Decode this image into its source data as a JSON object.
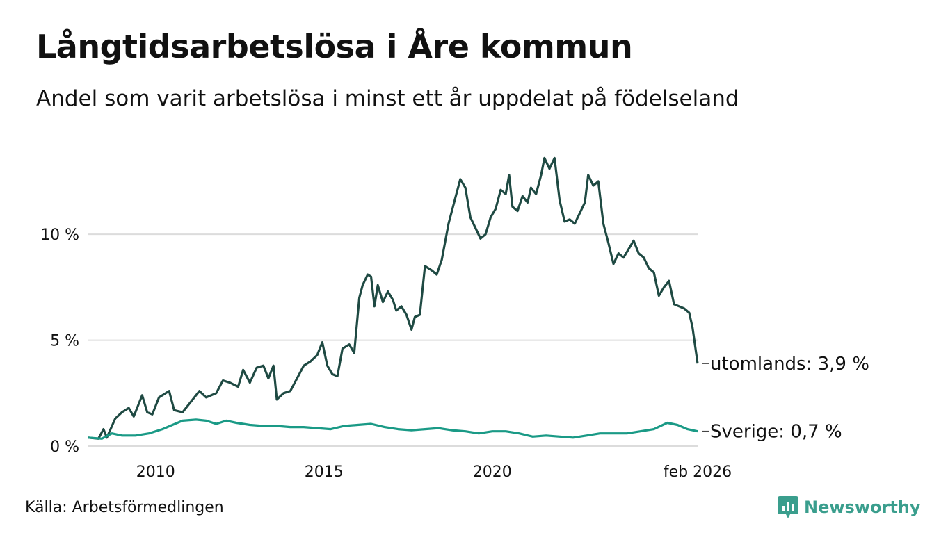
{
  "header": {
    "title": "Långtidsarbetslösa i Åre kommun",
    "subtitle": "Andel som varit arbetslösa i minst ett år uppdelat på födelseland"
  },
  "footer": {
    "source": "Källa: Arbetsförmedlingen",
    "brand": "Newsworthy"
  },
  "chart_data": {
    "type": "line",
    "title": "Långtidsarbetslösa i Åre kommun",
    "subtitle": "Andel som varit arbetslösa i minst ett år uppdelat på födelseland",
    "xlabel": "",
    "ylabel": "",
    "xlim": [
      2008.0,
      2026.1
    ],
    "ylim": [
      0,
      14.5
    ],
    "y_ticks": [
      {
        "value": 0,
        "label": "0 %"
      },
      {
        "value": 5,
        "label": "5 %"
      },
      {
        "value": 10,
        "label": "10 %"
      }
    ],
    "x_ticks": [
      {
        "value": 2010,
        "label": "2010"
      },
      {
        "value": 2015,
        "label": "2015"
      },
      {
        "value": 2020,
        "label": "2020"
      },
      {
        "value": 2026.1,
        "label": "feb 2026"
      }
    ],
    "grid": true,
    "series": [
      {
        "name": "utomlands",
        "end_label": "utomlands: 3,9 %",
        "color": "#1f4a43",
        "points": [
          [
            2008.0,
            0.4
          ],
          [
            2008.3,
            0.35
          ],
          [
            2008.45,
            0.8
          ],
          [
            2008.55,
            0.4
          ],
          [
            2008.8,
            1.3
          ],
          [
            2009.0,
            1.6
          ],
          [
            2009.2,
            1.8
          ],
          [
            2009.35,
            1.4
          ],
          [
            2009.6,
            2.4
          ],
          [
            2009.75,
            1.6
          ],
          [
            2009.9,
            1.5
          ],
          [
            2010.1,
            2.3
          ],
          [
            2010.4,
            2.6
          ],
          [
            2010.55,
            1.7
          ],
          [
            2010.8,
            1.6
          ],
          [
            2011.0,
            2.0
          ],
          [
            2011.3,
            2.6
          ],
          [
            2011.5,
            2.3
          ],
          [
            2011.8,
            2.5
          ],
          [
            2012.0,
            3.1
          ],
          [
            2012.2,
            3.0
          ],
          [
            2012.45,
            2.8
          ],
          [
            2012.6,
            3.6
          ],
          [
            2012.8,
            3.0
          ],
          [
            2013.0,
            3.7
          ],
          [
            2013.2,
            3.8
          ],
          [
            2013.35,
            3.2
          ],
          [
            2013.5,
            3.8
          ],
          [
            2013.6,
            2.2
          ],
          [
            2013.8,
            2.5
          ],
          [
            2014.0,
            2.6
          ],
          [
            2014.2,
            3.2
          ],
          [
            2014.4,
            3.8
          ],
          [
            2014.6,
            4.0
          ],
          [
            2014.8,
            4.3
          ],
          [
            2014.95,
            4.9
          ],
          [
            2015.1,
            3.8
          ],
          [
            2015.25,
            3.4
          ],
          [
            2015.4,
            3.3
          ],
          [
            2015.55,
            4.6
          ],
          [
            2015.75,
            4.8
          ],
          [
            2015.9,
            4.4
          ],
          [
            2016.05,
            7.0
          ],
          [
            2016.15,
            7.6
          ],
          [
            2016.3,
            8.1
          ],
          [
            2016.4,
            8.0
          ],
          [
            2016.5,
            6.6
          ],
          [
            2016.6,
            7.6
          ],
          [
            2016.75,
            6.8
          ],
          [
            2016.9,
            7.3
          ],
          [
            2017.05,
            6.9
          ],
          [
            2017.15,
            6.4
          ],
          [
            2017.3,
            6.6
          ],
          [
            2017.45,
            6.2
          ],
          [
            2017.6,
            5.5
          ],
          [
            2017.7,
            6.1
          ],
          [
            2017.85,
            6.2
          ],
          [
            2018.0,
            8.5
          ],
          [
            2018.2,
            8.3
          ],
          [
            2018.35,
            8.1
          ],
          [
            2018.5,
            8.8
          ],
          [
            2018.7,
            10.5
          ],
          [
            2018.9,
            11.7
          ],
          [
            2019.05,
            12.6
          ],
          [
            2019.2,
            12.2
          ],
          [
            2019.35,
            10.8
          ],
          [
            2019.5,
            10.3
          ],
          [
            2019.65,
            9.8
          ],
          [
            2019.8,
            10.0
          ],
          [
            2019.95,
            10.8
          ],
          [
            2020.1,
            11.2
          ],
          [
            2020.25,
            12.1
          ],
          [
            2020.4,
            11.9
          ],
          [
            2020.5,
            12.8
          ],
          [
            2020.6,
            11.3
          ],
          [
            2020.75,
            11.1
          ],
          [
            2020.9,
            11.8
          ],
          [
            2021.05,
            11.5
          ],
          [
            2021.15,
            12.2
          ],
          [
            2021.3,
            11.9
          ],
          [
            2021.45,
            12.8
          ],
          [
            2021.55,
            13.6
          ],
          [
            2021.7,
            13.1
          ],
          [
            2021.85,
            13.6
          ],
          [
            2022.0,
            11.6
          ],
          [
            2022.15,
            10.6
          ],
          [
            2022.3,
            10.7
          ],
          [
            2022.45,
            10.5
          ],
          [
            2022.6,
            11.0
          ],
          [
            2022.75,
            11.5
          ],
          [
            2022.85,
            12.8
          ],
          [
            2023.0,
            12.3
          ],
          [
            2023.15,
            12.5
          ],
          [
            2023.3,
            10.5
          ],
          [
            2023.45,
            9.6
          ],
          [
            2023.6,
            8.6
          ],
          [
            2023.75,
            9.1
          ],
          [
            2023.9,
            8.9
          ],
          [
            2024.05,
            9.3
          ],
          [
            2024.2,
            9.7
          ],
          [
            2024.35,
            9.1
          ],
          [
            2024.5,
            8.9
          ],
          [
            2024.65,
            8.4
          ],
          [
            2024.8,
            8.2
          ],
          [
            2024.95,
            7.1
          ],
          [
            2025.1,
            7.5
          ],
          [
            2025.25,
            7.8
          ],
          [
            2025.4,
            6.7
          ],
          [
            2025.55,
            6.6
          ],
          [
            2025.7,
            6.5
          ],
          [
            2025.85,
            6.3
          ],
          [
            2025.95,
            5.6
          ],
          [
            2026.1,
            3.9
          ]
        ]
      },
      {
        "name": "Sverige",
        "end_label": "Sverige: 0,7 %",
        "color": "#1a9a86",
        "points": [
          [
            2008.0,
            0.4
          ],
          [
            2008.4,
            0.35
          ],
          [
            2008.7,
            0.6
          ],
          [
            2009.0,
            0.5
          ],
          [
            2009.4,
            0.5
          ],
          [
            2009.8,
            0.6
          ],
          [
            2010.2,
            0.8
          ],
          [
            2010.5,
            1.0
          ],
          [
            2010.8,
            1.2
          ],
          [
            2011.2,
            1.25
          ],
          [
            2011.5,
            1.2
          ],
          [
            2011.8,
            1.05
          ],
          [
            2012.1,
            1.2
          ],
          [
            2012.4,
            1.1
          ],
          [
            2012.8,
            1.0
          ],
          [
            2013.2,
            0.95
          ],
          [
            2013.6,
            0.95
          ],
          [
            2014.0,
            0.9
          ],
          [
            2014.4,
            0.9
          ],
          [
            2014.8,
            0.85
          ],
          [
            2015.2,
            0.8
          ],
          [
            2015.6,
            0.95
          ],
          [
            2016.0,
            1.0
          ],
          [
            2016.4,
            1.05
          ],
          [
            2016.8,
            0.9
          ],
          [
            2017.2,
            0.8
          ],
          [
            2017.6,
            0.75
          ],
          [
            2018.0,
            0.8
          ],
          [
            2018.4,
            0.85
          ],
          [
            2018.8,
            0.75
          ],
          [
            2019.2,
            0.7
          ],
          [
            2019.6,
            0.6
          ],
          [
            2020.0,
            0.7
          ],
          [
            2020.4,
            0.7
          ],
          [
            2020.8,
            0.6
          ],
          [
            2021.2,
            0.45
          ],
          [
            2021.6,
            0.5
          ],
          [
            2022.0,
            0.45
          ],
          [
            2022.4,
            0.4
          ],
          [
            2022.8,
            0.5
          ],
          [
            2023.2,
            0.6
          ],
          [
            2023.6,
            0.6
          ],
          [
            2024.0,
            0.6
          ],
          [
            2024.4,
            0.7
          ],
          [
            2024.8,
            0.8
          ],
          [
            2025.2,
            1.1
          ],
          [
            2025.5,
            1.0
          ],
          [
            2025.8,
            0.8
          ],
          [
            2026.1,
            0.7
          ]
        ]
      }
    ]
  }
}
